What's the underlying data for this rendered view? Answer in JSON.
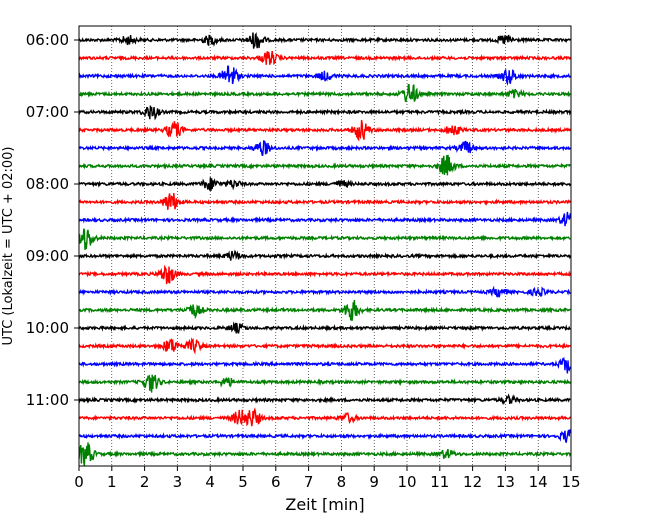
{
  "chart_data": {
    "type": "line",
    "subtype": "helicorder-seismogram",
    "xlabel": "Zeit  [min]",
    "ylabel": "UTC (Lokalzeit = UTC + 02:00)",
    "xlim": [
      0,
      15
    ],
    "x_ticks": [
      "0",
      "1",
      "2",
      "3",
      "4",
      "5",
      "6",
      "7",
      "8",
      "9",
      "10",
      "11",
      "12",
      "13",
      "14",
      "15"
    ],
    "y_tick_labels": [
      "06:00",
      "07:00",
      "08:00",
      "09:00",
      "10:00",
      "11:00"
    ],
    "vertical_grid": "dotted, every minute",
    "colors": [
      "#000000",
      "#ff0000",
      "#0000ff",
      "#008000"
    ],
    "rows": [
      {
        "start": "06:00",
        "color": "#000000",
        "events": [
          [
            1.5,
            0.35
          ],
          [
            4.0,
            0.35
          ],
          [
            5.4,
            0.7
          ],
          [
            13.0,
            0.4
          ]
        ]
      },
      {
        "start": "06:15",
        "color": "#ff0000",
        "events": [
          [
            5.8,
            0.6
          ]
        ]
      },
      {
        "start": "06:30",
        "color": "#0000ff",
        "events": [
          [
            4.6,
            1.0
          ],
          [
            7.5,
            0.35
          ],
          [
            13.1,
            0.6
          ]
        ]
      },
      {
        "start": "06:45",
        "color": "#008000",
        "events": [
          [
            10.1,
            0.9
          ],
          [
            13.3,
            0.3
          ]
        ]
      },
      {
        "start": "07:00",
        "color": "#000000",
        "events": [
          [
            2.2,
            0.6
          ]
        ]
      },
      {
        "start": "07:15",
        "color": "#ff0000",
        "events": [
          [
            2.9,
            0.7
          ],
          [
            8.6,
            0.85
          ],
          [
            11.4,
            0.4
          ]
        ]
      },
      {
        "start": "07:30",
        "color": "#0000ff",
        "events": [
          [
            5.6,
            0.6
          ],
          [
            11.8,
            0.5
          ]
        ]
      },
      {
        "start": "07:45",
        "color": "#008000",
        "events": [
          [
            11.2,
            0.9
          ]
        ]
      },
      {
        "start": "08:00",
        "color": "#000000",
        "events": [
          [
            4.0,
            0.5
          ],
          [
            4.7,
            0.3
          ],
          [
            8.0,
            0.25
          ]
        ]
      },
      {
        "start": "08:15",
        "color": "#ff0000",
        "events": [
          [
            2.8,
            0.8
          ]
        ]
      },
      {
        "start": "08:30",
        "color": "#0000ff",
        "events": [
          [
            14.9,
            0.6
          ]
        ]
      },
      {
        "start": "08:45",
        "color": "#008000",
        "events": [
          [
            0.2,
            1.0
          ]
        ]
      },
      {
        "start": "09:00",
        "color": "#000000",
        "events": [
          [
            4.7,
            0.35
          ]
        ]
      },
      {
        "start": "09:15",
        "color": "#ff0000",
        "events": [
          [
            2.7,
            0.8
          ]
        ]
      },
      {
        "start": "09:30",
        "color": "#0000ff",
        "events": [
          [
            12.8,
            0.35
          ],
          [
            14.0,
            0.3
          ]
        ]
      },
      {
        "start": "09:45",
        "color": "#008000",
        "events": [
          [
            3.5,
            0.5
          ],
          [
            8.3,
            0.9
          ]
        ]
      },
      {
        "start": "10:00",
        "color": "#000000",
        "events": [
          [
            4.8,
            0.35
          ]
        ]
      },
      {
        "start": "10:15",
        "color": "#ff0000",
        "events": [
          [
            2.8,
            0.6
          ],
          [
            3.5,
            0.5
          ]
        ]
      },
      {
        "start": "10:30",
        "color": "#0000ff",
        "events": [
          [
            14.9,
            0.7
          ]
        ]
      },
      {
        "start": "10:45",
        "color": "#008000",
        "events": [
          [
            2.2,
            0.8
          ],
          [
            4.5,
            0.35
          ]
        ]
      },
      {
        "start": "11:00",
        "color": "#000000",
        "events": [
          [
            13.1,
            0.3
          ]
        ]
      },
      {
        "start": "11:15",
        "color": "#ff0000",
        "events": [
          [
            4.9,
            0.6
          ],
          [
            5.3,
            0.7
          ],
          [
            8.2,
            0.35
          ]
        ]
      },
      {
        "start": "11:30",
        "color": "#0000ff",
        "events": [
          [
            14.9,
            0.5
          ]
        ]
      },
      {
        "start": "11:45",
        "color": "#008000",
        "events": [
          [
            0.2,
            1.0
          ],
          [
            11.2,
            0.35
          ]
        ]
      }
    ]
  }
}
